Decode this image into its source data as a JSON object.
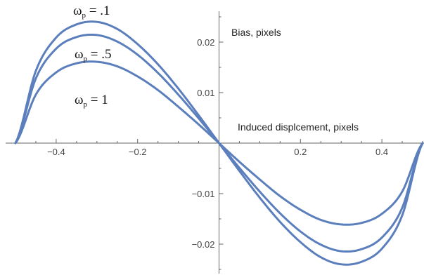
{
  "chart_data": {
    "type": "line",
    "xlabel": "Induced displcement, pixels",
    "ylabel": "Bias, pixels",
    "xlim": [
      -0.5,
      0.5
    ],
    "ylim": [
      -0.025,
      0.025
    ],
    "x_ticks": [
      {
        "value": -0.4,
        "label": "−0.4"
      },
      {
        "value": -0.2,
        "label": "−0.2"
      },
      {
        "value": 0.2,
        "label": "0.2"
      },
      {
        "value": 0.4,
        "label": "0.4"
      }
    ],
    "y_ticks": [
      {
        "value": 0.02,
        "label": "0.02"
      },
      {
        "value": 0.01,
        "label": "0.01"
      },
      {
        "value": -0.01,
        "label": "−0.01"
      },
      {
        "value": -0.02,
        "label": "−0.02"
      }
    ],
    "x": [
      -0.5,
      -0.45,
      -0.4,
      -0.35,
      -0.3,
      -0.25,
      -0.2,
      -0.15,
      -0.1,
      -0.05,
      0,
      0.05,
      0.1,
      0.15,
      0.2,
      0.25,
      0.3,
      0.35,
      0.4,
      0.45,
      0.5
    ],
    "series": [
      {
        "values": [
          0,
          0.0143,
          0.0209,
          0.0235,
          0.024,
          0.0226,
          0.0196,
          0.0156,
          0.0108,
          0.0055,
          0,
          -0.0055,
          -0.0108,
          -0.0156,
          -0.0196,
          -0.0226,
          -0.024,
          -0.0235,
          -0.0209,
          -0.0143,
          0
        ]
      },
      {
        "values": [
          0,
          0.0128,
          0.0187,
          0.021,
          0.0214,
          0.0201,
          0.0175,
          0.0139,
          0.0096,
          0.0049,
          0,
          -0.0049,
          -0.0096,
          -0.0139,
          -0.0175,
          -0.0201,
          -0.0214,
          -0.021,
          -0.0187,
          -0.0128,
          0
        ]
      },
      {
        "values": [
          0,
          0.0096,
          0.014,
          0.0158,
          0.0161,
          0.0152,
          0.0132,
          0.0105,
          0.0072,
          0.0037,
          0,
          -0.0037,
          -0.0072,
          -0.0105,
          -0.0132,
          -0.0152,
          -0.0161,
          -0.0158,
          -0.014,
          -0.0096,
          0
        ]
      }
    ],
    "annotations": [
      {
        "symbol": "ω",
        "subscript": "p",
        "text": " = .1"
      },
      {
        "symbol": "ω",
        "subscript": "p",
        "text": " = .5"
      },
      {
        "symbol": "ω",
        "subscript": "p",
        "text": " = 1"
      }
    ],
    "line_color": "#5b7fbd",
    "axis_color": "#666666"
  }
}
